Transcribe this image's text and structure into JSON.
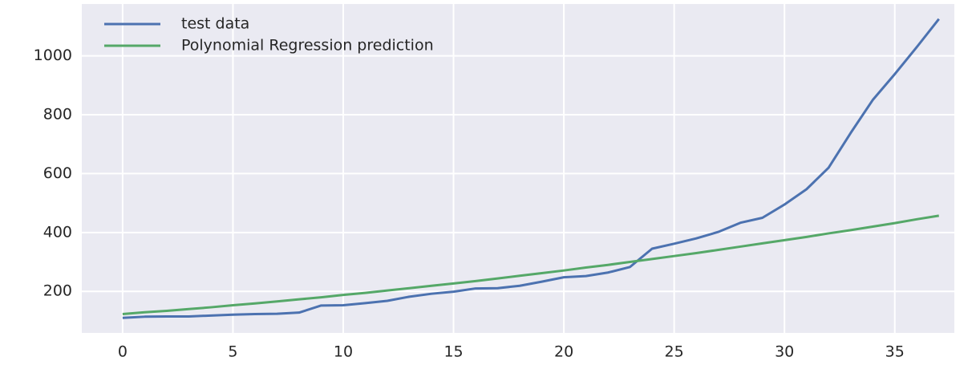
{
  "chart_data": {
    "type": "line",
    "x": [
      0,
      1,
      2,
      3,
      4,
      5,
      6,
      7,
      8,
      9,
      10,
      11,
      12,
      13,
      14,
      15,
      16,
      17,
      18,
      19,
      20,
      21,
      22,
      23,
      24,
      25,
      26,
      27,
      28,
      29,
      30,
      31,
      32,
      33,
      34,
      35,
      36,
      37
    ],
    "series": [
      {
        "name": "test data",
        "color": "#4c72b0",
        "values": [
          110,
          114,
          115,
          115,
          118,
          121,
          123,
          124,
          128,
          152,
          153,
          160,
          168,
          182,
          192,
          199,
          210,
          211,
          219,
          233,
          248,
          252,
          264,
          283,
          345,
          362,
          380,
          402,
          433,
          450,
          495,
          547,
          620,
          738,
          850,
          938,
          1030,
          1125
        ]
      },
      {
        "name": "Polynomial Regression prediction",
        "color": "#55a868",
        "values": [
          123,
          129,
          134,
          140,
          146,
          153,
          159,
          166,
          173,
          180,
          188,
          195,
          203,
          211,
          219,
          227,
          235,
          244,
          253,
          262,
          271,
          281,
          290,
          300,
          310,
          320,
          330,
          341,
          352,
          363,
          374,
          385,
          397,
          408,
          420,
          432,
          445,
          457
        ]
      }
    ],
    "xlim": [
      -1.85,
      37.7
    ],
    "xticks": [
      0,
      5,
      10,
      15,
      20,
      25,
      30,
      35
    ],
    "ylim": [
      59,
      1176
    ],
    "yticks": [
      200,
      400,
      600,
      800,
      1000
    ],
    "grid": true,
    "legend": "upper left"
  }
}
